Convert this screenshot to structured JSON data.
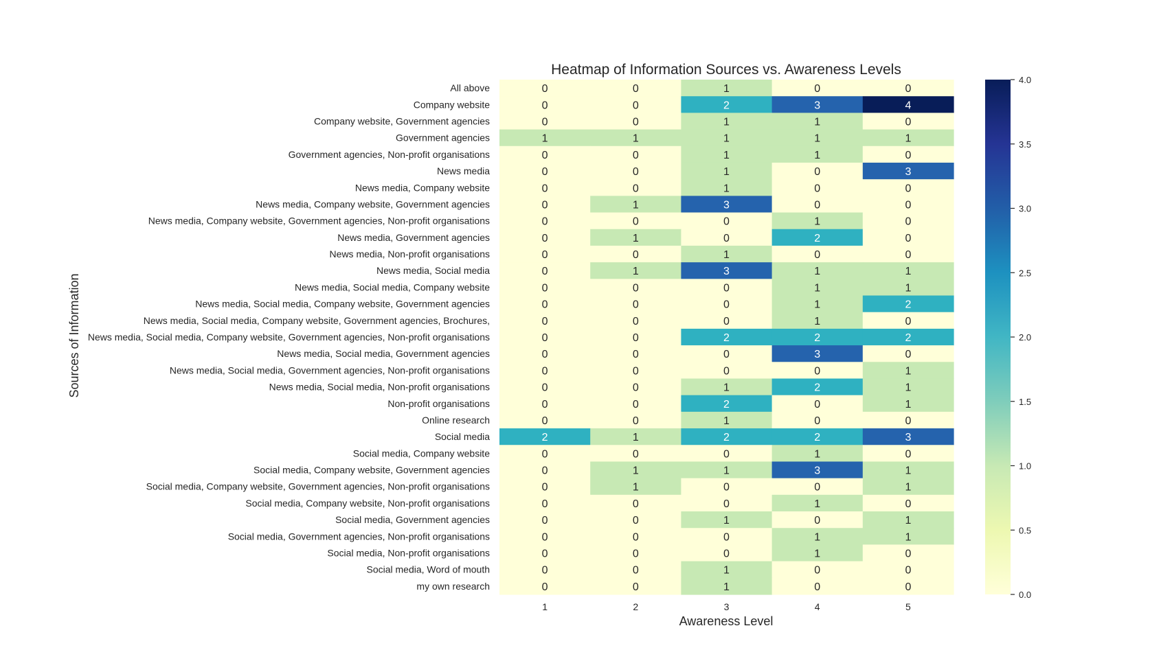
{
  "chart_data": {
    "type": "heatmap",
    "title": "Heatmap of Information Sources vs. Awareness Levels",
    "xlabel": "Awareness Level",
    "ylabel": "Sources of Information",
    "x_categories": [
      "1",
      "2",
      "3",
      "4",
      "5"
    ],
    "y_categories": [
      "All above ",
      "Company website",
      "Company website, Government agencies",
      "Government agencies",
      "Government agencies, Non-profit organisations",
      "News media",
      "News media, Company website",
      "News media, Company website, Government agencies",
      "News media, Company website, Government agencies, Non-profit organisations",
      "News media, Government agencies",
      "News media, Non-profit organisations",
      "News media, Social media",
      "News media, Social media, Company website",
      "News media, Social media, Company website, Government agencies",
      "News media, Social media, Company website, Government agencies, Brochures, ",
      "News media, Social media, Company website, Government agencies, Non-profit organisations",
      "News media, Social media, Government agencies",
      "News media, Social media, Government agencies, Non-profit organisations",
      "News media, Social media, Non-profit organisations",
      "Non-profit organisations",
      "Online research ",
      "Social media",
      "Social media, Company website",
      "Social media, Company website, Government agencies",
      "Social media, Company website, Government agencies, Non-profit organisations",
      "Social media, Company website, Non-profit organisations",
      "Social media, Government agencies",
      "Social media, Government agencies, Non-profit organisations",
      "Social media, Non-profit organisations",
      "Social media, Word of mouth",
      "my own research"
    ],
    "values": [
      [
        0,
        0,
        1,
        0,
        0
      ],
      [
        0,
        0,
        2,
        3,
        4
      ],
      [
        0,
        0,
        1,
        1,
        0
      ],
      [
        1,
        1,
        1,
        1,
        1
      ],
      [
        0,
        0,
        1,
        1,
        0
      ],
      [
        0,
        0,
        1,
        0,
        3
      ],
      [
        0,
        0,
        1,
        0,
        0
      ],
      [
        0,
        1,
        3,
        0,
        0
      ],
      [
        0,
        0,
        0,
        1,
        0
      ],
      [
        0,
        1,
        0,
        2,
        0
      ],
      [
        0,
        0,
        1,
        0,
        0
      ],
      [
        0,
        1,
        3,
        1,
        1
      ],
      [
        0,
        0,
        0,
        1,
        1
      ],
      [
        0,
        0,
        0,
        1,
        2
      ],
      [
        0,
        0,
        0,
        1,
        0
      ],
      [
        0,
        0,
        2,
        2,
        2
      ],
      [
        0,
        0,
        0,
        3,
        0
      ],
      [
        0,
        0,
        0,
        0,
        1
      ],
      [
        0,
        0,
        1,
        2,
        1
      ],
      [
        0,
        0,
        2,
        0,
        1
      ],
      [
        0,
        0,
        1,
        0,
        0
      ],
      [
        2,
        1,
        2,
        2,
        3
      ],
      [
        0,
        0,
        0,
        1,
        0
      ],
      [
        0,
        1,
        1,
        3,
        1
      ],
      [
        0,
        1,
        0,
        0,
        1
      ],
      [
        0,
        0,
        0,
        1,
        0
      ],
      [
        0,
        0,
        1,
        0,
        1
      ],
      [
        0,
        0,
        0,
        1,
        1
      ],
      [
        0,
        0,
        0,
        1,
        0
      ],
      [
        0,
        0,
        1,
        0,
        0
      ],
      [
        0,
        0,
        1,
        0,
        0
      ]
    ],
    "value_range": [
      0,
      4
    ],
    "colormap": "YlGnBu",
    "colorbar_ticks": [
      "0.0",
      "0.5",
      "1.0",
      "1.5",
      "2.0",
      "2.5",
      "3.0",
      "3.5",
      "4.0"
    ],
    "color_scale": {
      "0": "#ffffd9",
      "1": "#c7e9b4",
      "2": "#2fb1c1",
      "3": "#2563ad",
      "4": "#081d58"
    },
    "grid": false,
    "legend": "colorbar-right"
  }
}
